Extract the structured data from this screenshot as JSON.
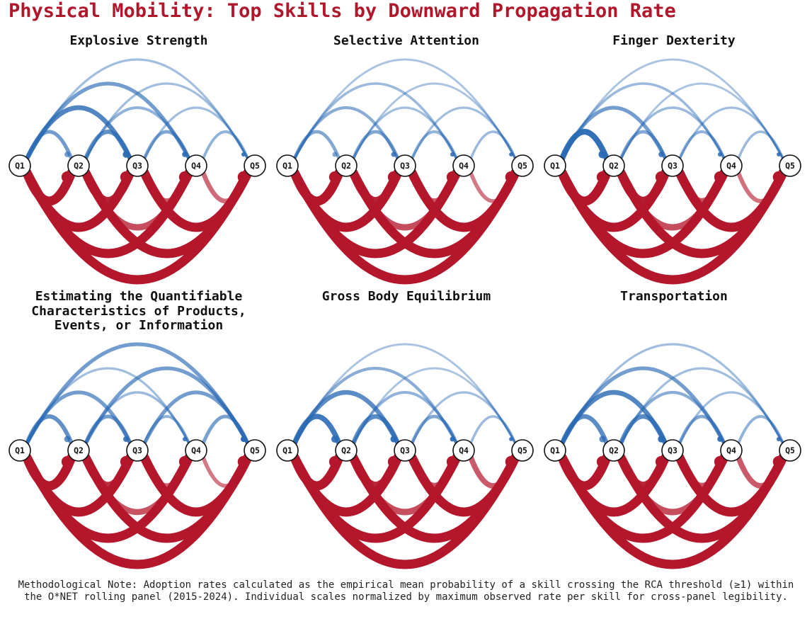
{
  "title": "Physical Mobility: Top Skills by Downward Propagation Rate",
  "colors": {
    "upward": "#2a6ab4",
    "downward": "#b4172c",
    "title": "#b0172b",
    "node_fill": "#ffffff",
    "node_stroke": "#111111"
  },
  "node_labels": [
    "Q1",
    "Q2",
    "Q3",
    "Q4",
    "Q5"
  ],
  "chart_data": {
    "type": "arc-diagram",
    "description_note": "Each panel: forward arcs between quintile nodes. Upward (above) arcs blue, downward (below) arcs red; weight = relative propagation rate (0-1).",
    "panels": [
      {
        "title": "Explosive Strength",
        "up": {
          "1-2": 0.55,
          "1-3": 0.75,
          "1-4": 0.55,
          "1-5": 0.25,
          "2-3": 0.65,
          "2-4": 0.35,
          "2-5": 0.25,
          "3-4": 0.45,
          "3-5": 0.25,
          "4-5": 0.35
        },
        "down": {
          "1-2": 1.0,
          "1-3": 1.0,
          "1-4": 1.0,
          "1-5": 1.0,
          "2-3": 0.9,
          "2-4": 0.65,
          "2-5": 1.0,
          "3-4": 0.55,
          "3-5": 1.0,
          "4-5": 0.45
        }
      },
      {
        "title": "Selective Attention",
        "up": {
          "1-2": 0.45,
          "1-3": 0.4,
          "1-4": 0.3,
          "1-5": 0.2,
          "2-3": 0.45,
          "2-4": 0.25,
          "2-5": 0.2,
          "3-4": 0.35,
          "3-5": 0.25,
          "4-5": 0.3
        },
        "down": {
          "1-2": 1.0,
          "1-3": 1.0,
          "1-4": 1.0,
          "1-5": 1.0,
          "2-3": 0.9,
          "2-4": 0.65,
          "2-5": 1.0,
          "3-4": 0.55,
          "3-5": 1.0,
          "4-5": 0.35
        }
      },
      {
        "title": "Finger Dexterity",
        "up": {
          "1-2": 0.95,
          "1-3": 0.55,
          "1-4": 0.3,
          "1-5": 0.2,
          "2-3": 0.45,
          "2-4": 0.3,
          "2-5": 0.2,
          "3-4": 0.35,
          "3-5": 0.25,
          "4-5": 0.3
        },
        "down": {
          "1-2": 1.0,
          "1-3": 1.0,
          "1-4": 1.0,
          "1-5": 1.0,
          "2-3": 0.95,
          "2-4": 0.65,
          "2-5": 1.0,
          "3-4": 0.6,
          "3-5": 1.0,
          "4-5": 0.4
        }
      },
      {
        "title": "Estimating the Quantifiable Characteristics of Products, Events, or Information",
        "up": {
          "1-2": 0.65,
          "1-3": 0.55,
          "1-4": 0.25,
          "1-5": 0.55,
          "2-3": 0.55,
          "2-4": 0.3,
          "2-5": 0.55,
          "3-4": 0.35,
          "3-5": 0.55,
          "4-5": 0.5
        },
        "down": {
          "1-2": 1.0,
          "1-3": 1.0,
          "1-4": 1.0,
          "1-5": 1.0,
          "2-3": 0.85,
          "2-4": 0.6,
          "2-5": 1.0,
          "3-4": 0.5,
          "3-5": 1.0,
          "4-5": 0.35
        }
      },
      {
        "title": "Gross Body Equilibrium",
        "up": {
          "1-2": 0.85,
          "1-3": 0.7,
          "1-4": 0.4,
          "1-5": 0.2,
          "2-3": 0.7,
          "2-4": 0.35,
          "2-5": 0.2,
          "3-4": 0.45,
          "3-5": 0.25,
          "4-5": 0.3
        },
        "down": {
          "1-2": 1.0,
          "1-3": 1.0,
          "1-4": 1.0,
          "1-5": 1.0,
          "2-3": 0.9,
          "2-4": 0.65,
          "2-5": 1.0,
          "3-4": 0.6,
          "3-5": 1.0,
          "4-5": 0.55
        }
      },
      {
        "title": "Transportation",
        "up": {
          "1-2": 0.7,
          "1-3": 0.75,
          "1-4": 0.55,
          "1-5": 0.25,
          "2-3": 0.7,
          "2-4": 0.4,
          "2-5": 0.25,
          "3-4": 0.45,
          "3-5": 0.25,
          "4-5": 0.35
        },
        "down": {
          "1-2": 1.0,
          "1-3": 1.0,
          "1-4": 1.0,
          "1-5": 1.0,
          "2-3": 0.9,
          "2-4": 0.65,
          "2-5": 1.0,
          "3-4": 0.6,
          "3-5": 1.0,
          "4-5": 0.55
        }
      }
    ]
  },
  "footnote": "Methodological Note: Adoption rates calculated as the empirical mean probability of a skill crossing the RCA threshold (≥1) within the O*NET rolling panel (2015-2024). Individual scales normalized by maximum observed rate per skill for cross-panel legibility."
}
